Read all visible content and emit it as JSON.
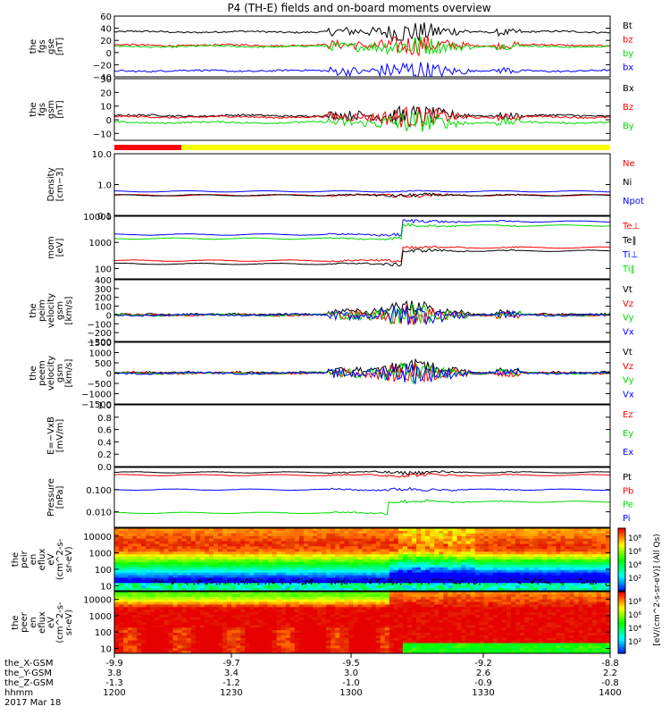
{
  "title": "P4 (TH-E) fields and on-board moments overview",
  "colors": {
    "black": "#000000",
    "red": "#ff0000",
    "green": "#00dd00",
    "blue": "#0000ff",
    "yellow": "#ffff00"
  },
  "chart_data": [
    {
      "type": "line",
      "id": "fgs_gse",
      "ylabel": [
        "the",
        "fgs",
        "gse",
        "[nT]"
      ],
      "ylim": [
        -40,
        60
      ],
      "yticks": [
        "60",
        "40",
        "20",
        "0",
        "−20",
        "−40"
      ],
      "series": [
        {
          "name": "Bt",
          "color": "black",
          "level": 34
        },
        {
          "name": "bz",
          "color": "red",
          "level": 12
        },
        {
          "name": "by",
          "color": "green",
          "level": 10
        },
        {
          "name": "bx",
          "color": "blue",
          "level": -30
        }
      ]
    },
    {
      "type": "line",
      "id": "fgs_gsm",
      "ylabel": [
        "the",
        "fgs",
        "gsm",
        "[nT]"
      ],
      "ylim": [
        -15,
        30
      ],
      "yticks": [
        "30",
        "20",
        "10",
        "0",
        "−10"
      ],
      "series": [
        {
          "name": "Bx",
          "color": "black",
          "level": 3
        },
        {
          "name": "Bz",
          "color": "red",
          "level": 2
        },
        {
          "name": "By",
          "color": "green",
          "level": -2
        }
      ]
    },
    {
      "type": "line",
      "id": "density",
      "ylabel": [
        "Density",
        "[cm−3]"
      ],
      "log": true,
      "ylim": [
        0.1,
        10
      ],
      "yticks": [
        "10.0",
        "1.0",
        "0.1"
      ],
      "series": [
        {
          "name": "Ne",
          "color": "red",
          "level": 0.45
        },
        {
          "name": "Ni",
          "color": "black",
          "level": 0.45
        },
        {
          "name": "Npot",
          "color": "blue",
          "level": 0.6
        }
      ]
    },
    {
      "type": "line",
      "id": "temperature",
      "ylabel": [
        "mom",
        "[eV]"
      ],
      "log": true,
      "ylim": [
        40,
        10000
      ],
      "yticks": [
        "10000",
        "1000",
        "100"
      ],
      "series": [
        {
          "name": "Te⊥",
          "color": "red",
          "level": 200
        },
        {
          "name": "Te‖",
          "color": "black",
          "level": 150
        },
        {
          "name": "Ti⊥",
          "color": "blue",
          "level": 2000
        },
        {
          "name": "Ti‖",
          "color": "green",
          "level": 1400
        }
      ]
    },
    {
      "type": "line",
      "id": "peim_velocity",
      "ylabel": [
        "the",
        "peim",
        "velocity",
        "gsm",
        "[km/s]"
      ],
      "ylim": [
        -300,
        400
      ],
      "yticks": [
        "400",
        "300",
        "200",
        "100",
        "0",
        "−100",
        "−200",
        "−300"
      ],
      "series": [
        {
          "name": "Vt",
          "color": "black",
          "level": 0
        },
        {
          "name": "Vz",
          "color": "red",
          "level": 0
        },
        {
          "name": "Vy",
          "color": "green",
          "level": 0
        },
        {
          "name": "Vx",
          "color": "blue",
          "level": 0
        }
      ]
    },
    {
      "type": "line",
      "id": "peem_velocity",
      "ylabel": [
        "the",
        "peem",
        "velocity",
        "gsm",
        "[km/s]"
      ],
      "ylim": [
        -1500,
        1500
      ],
      "yticks": [
        "1500",
        "1000",
        "500",
        "0",
        "−500",
        "−1000",
        "−1500"
      ],
      "series": [
        {
          "name": "Vt",
          "color": "black",
          "level": 0
        },
        {
          "name": "Vz",
          "color": "red",
          "level": 0
        },
        {
          "name": "Vy",
          "color": "green",
          "level": 0
        },
        {
          "name": "Vx",
          "color": "blue",
          "level": 0
        }
      ]
    },
    {
      "type": "line",
      "id": "efield",
      "ylabel": [
        "E=−VxB",
        "[mV/m]"
      ],
      "ylim": [
        0,
        1
      ],
      "yticks": [
        "1.0",
        "0.8",
        "0.6",
        "0.4",
        "0.2",
        "0.0"
      ],
      "series": [
        {
          "name": "Ez",
          "color": "red"
        },
        {
          "name": "Ey",
          "color": "green"
        },
        {
          "name": "Ex",
          "color": "blue"
        }
      ]
    },
    {
      "type": "line",
      "id": "pressure",
      "ylabel": [
        "Pressure",
        "[nPa]"
      ],
      "log": true,
      "ylim": [
        0.002,
        1
      ],
      "yticks": [
        "0.100",
        "0.010"
      ],
      "series": [
        {
          "name": "Pt",
          "color": "black",
          "level": 0.6
        },
        {
          "name": "Pb",
          "color": "red",
          "level": 0.45
        },
        {
          "name": "Pe",
          "color": "green",
          "level": 0.009
        },
        {
          "name": "Pi",
          "color": "blue",
          "level": 0.1
        }
      ]
    },
    {
      "type": "heatmap",
      "id": "peir_en_eflux",
      "ylabel": [
        "the",
        "peir",
        "en",
        "eflux",
        "eV",
        "(cm^2-s-",
        "sr-eV)"
      ],
      "log": true,
      "ylim": [
        5,
        30000
      ],
      "yticks": [
        "10000",
        "1000",
        "100",
        "10"
      ]
    },
    {
      "type": "heatmap",
      "id": "peer_en_eflux",
      "ylabel": [
        "the",
        "peer",
        "en",
        "eflux",
        "eV",
        "(cm^2-s-",
        "sr-eV)"
      ],
      "log": true,
      "ylim": [
        5,
        30000
      ],
      "yticks": [
        "10000",
        "1000",
        "100",
        "10"
      ]
    }
  ],
  "colorbar": {
    "ticks": [
      "10⁸",
      "10⁶",
      "10⁴",
      "10²"
    ],
    "label": "[eV/(cm^2-s-sr-eV)] (All Qs)"
  },
  "x_axis": {
    "row_labels": [
      "the_X-GSM",
      "the_Y-GSM",
      "the_Z-GSM",
      "hhmm",
      "2017 Mar 18"
    ],
    "ticks": [
      {
        "x": "-9.9",
        "y": "3.8",
        "z": "-1.3",
        "hhmm": "1200"
      },
      {
        "x": "-9.7",
        "y": "3.4",
        "z": "-1.2",
        "hhmm": "1230"
      },
      {
        "x": "-9.5",
        "y": "3.0",
        "z": "-1.0",
        "hhmm": "1300"
      },
      {
        "x": "-9.2",
        "y": "2.6",
        "z": "-0.9",
        "hhmm": "1330"
      },
      {
        "x": "-8.8",
        "y": "2.2",
        "z": "-0.8",
        "hhmm": "1400"
      }
    ]
  }
}
